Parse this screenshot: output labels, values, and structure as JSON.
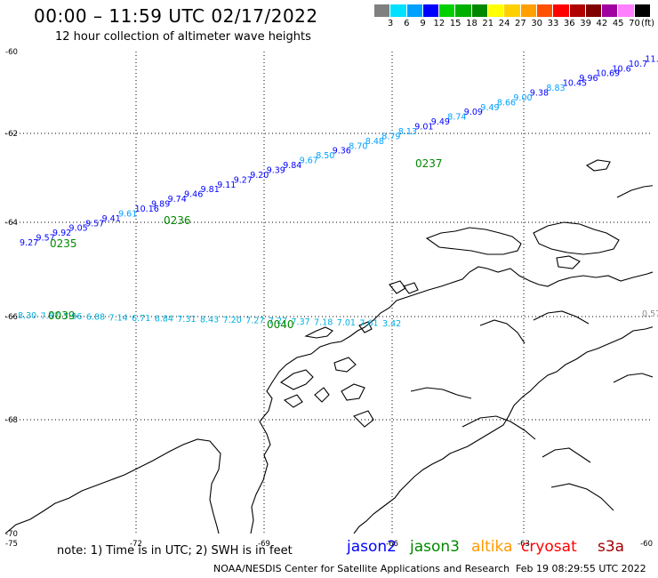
{
  "header": {
    "title": "00:00 – 11:59 UTC 02/17/2022",
    "subtitle": "12 hour collection of altimeter wave heights"
  },
  "legend": {
    "unit": "(ft)",
    "bins": [
      {
        "label": "3",
        "color": "#808080"
      },
      {
        "label": "6",
        "color": "#00e0ff"
      },
      {
        "label": "9",
        "color": "#00a0ff"
      },
      {
        "label": "12",
        "color": "#0000ff"
      },
      {
        "label": "15",
        "color": "#00d000"
      },
      {
        "label": "18",
        "color": "#00b000"
      },
      {
        "label": "21",
        "color": "#008800"
      },
      {
        "label": "24",
        "color": "#ffff00"
      },
      {
        "label": "27",
        "color": "#ffd000"
      },
      {
        "label": "30",
        "color": "#ffa000"
      },
      {
        "label": "33",
        "color": "#ff5000"
      },
      {
        "label": "36",
        "color": "#ff0000"
      },
      {
        "label": "39",
        "color": "#b00000"
      },
      {
        "label": "42",
        "color": "#800000"
      },
      {
        "label": "45",
        "color": "#a000a0"
      },
      {
        "label": "70",
        "color": "#ff80ff"
      },
      {
        "label": "",
        "color": "#000000"
      }
    ]
  },
  "axes": {
    "lon_labels": [
      "-75",
      "-72",
      "-69",
      "-66",
      "-63",
      "-60"
    ],
    "lat_labels": [
      "-60",
      "-62",
      "-64",
      "-66",
      "-68",
      "-70"
    ]
  },
  "satellites": {
    "jason2": {
      "name": "jason2",
      "color": "#0000ff"
    },
    "jason3": {
      "name": "jason3",
      "color": "#008800"
    },
    "altika": {
      "name": "altika",
      "color": "#ff9900"
    },
    "cryosat": {
      "name": "cryosat",
      "color": "#ff0000"
    },
    "s3a": {
      "name": "s3a",
      "color": "#a00000"
    }
  },
  "tracks": [
    {
      "satellite": "jason2",
      "values": [
        "9.27",
        "9.57",
        "9.92",
        "9.05",
        "9.57",
        "9.41",
        "9.61",
        "10.16",
        "9.89",
        "9.74",
        "9.46",
        "9.81",
        "9.11",
        "9.27",
        "9.20",
        "9.39",
        "9.84",
        "9.67",
        "8.50",
        "9.36",
        "8.70",
        "8.48",
        "8.79",
        "8.13",
        "9.01",
        "9.49",
        "8.74",
        "9.09",
        "9.49",
        "8.66",
        "9.00",
        "9.38",
        "8.83",
        "10.45",
        "9.96",
        "10.69",
        "10.6",
        "10.7",
        "11.",
        "1"
      ],
      "colors": [
        "#0000ff",
        "#0000ff",
        "#0000ff",
        "#0000ff",
        "#0000ff",
        "#0000ff",
        "#00a0ff",
        "#0000ff",
        "#0000ff",
        "#0000ff",
        "#0000ff",
        "#0000ff",
        "#0000ff",
        "#0000ff",
        "#0000ff",
        "#0000ff",
        "#0000ff",
        "#00a0ff",
        "#00a0ff",
        "#0000ff",
        "#00a0ff",
        "#00a0ff",
        "#00a0ff",
        "#00a0ff",
        "#0000ff",
        "#0000ff",
        "#00a0ff",
        "#0000ff",
        "#00a0ff",
        "#00a0ff",
        "#00a0ff",
        "#0000ff",
        "#00a0ff",
        "#0000ff",
        "#0000ff",
        "#0000ff",
        "#0000ff",
        "#0000ff",
        "#0000ff",
        "#0000ff"
      ]
    },
    {
      "satellite": "altika-lower",
      "values": [
        "8.30",
        "7.67",
        "7.96",
        "6.88",
        "7.14",
        "6.71",
        "6.84",
        "7.31",
        "8.43",
        "7.20",
        "7.27",
        "7.27",
        "7.37",
        "7.18",
        "7.01",
        "7.61",
        "3.42"
      ]
    },
    {
      "satellite": "far-right",
      "values": [
        "0.57"
      ]
    }
  ],
  "time_labels": [
    "0235",
    "0236",
    "0237",
    "0039",
    "0040"
  ]
}
